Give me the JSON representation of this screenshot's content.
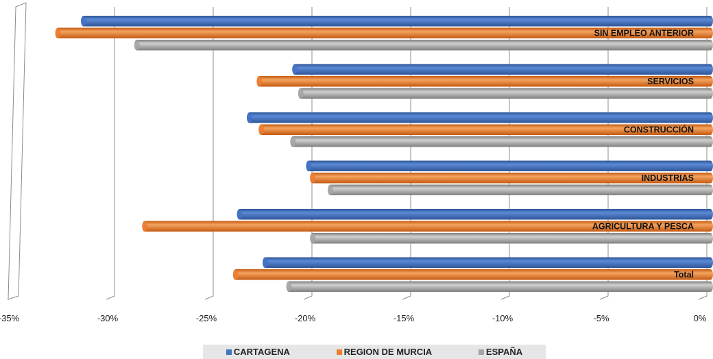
{
  "chart_data": {
    "type": "bar",
    "orientation": "horizontal",
    "categories": [
      "Total",
      "AGRICULTURA Y PESCA",
      "INDUSTRIAS",
      "CONSTRUCCIÓN",
      "SERVICIOS",
      "SIN EMPLEO ANTERIOR"
    ],
    "series": [
      {
        "name": "CARTAGENA",
        "color": "#4472c4",
        "values": [
          -22.5,
          -23.8,
          -20.3,
          -23.3,
          -21.0,
          -31.7
        ]
      },
      {
        "name": "REGION DE MURCIA",
        "color": "#ed7d31",
        "values": [
          -24.0,
          -28.6,
          -20.1,
          -22.7,
          -22.8,
          -33.0
        ]
      },
      {
        "name": "ESPAÑA",
        "color": "#a5a5a5",
        "values": [
          -21.3,
          -20.1,
          -19.2,
          -21.1,
          -20.7,
          -29.0
        ]
      }
    ],
    "xlim": [
      -35,
      0
    ],
    "x_ticks": [
      "-35%",
      "-30%",
      "-25%",
      "-20%",
      "-15%",
      "-10%",
      "-5%",
      "0%"
    ],
    "grid": true,
    "legend_position": "bottom"
  }
}
